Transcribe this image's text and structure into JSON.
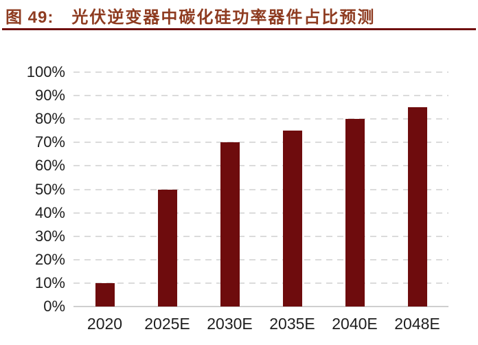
{
  "header": {
    "figure_label": "图 49:",
    "title": "光伏逆变器中碳化硅功率器件占比预测"
  },
  "chart_data": {
    "type": "bar",
    "title": "光伏逆变器中碳化硅功率器件占比预测",
    "figure_label": "图 49:",
    "categories": [
      "2020",
      "2025E",
      "2030E",
      "2035E",
      "2040E",
      "2048E"
    ],
    "values": [
      10,
      50,
      70,
      75,
      80,
      85
    ],
    "xlabel": "",
    "ylabel": "",
    "ylim": [
      0,
      100
    ],
    "y_ticks": [
      {
        "value": 100,
        "label": "100%"
      },
      {
        "value": 90,
        "label": "90%"
      },
      {
        "value": 80,
        "label": "80%"
      },
      {
        "value": 70,
        "label": "70%"
      },
      {
        "value": 60,
        "label": "60%"
      },
      {
        "value": 50,
        "label": "50%"
      },
      {
        "value": 40,
        "label": "40%"
      },
      {
        "value": 30,
        "label": "30%"
      },
      {
        "value": 20,
        "label": "20%"
      },
      {
        "value": 10,
        "label": "10%"
      },
      {
        "value": 0,
        "label": "0%"
      }
    ],
    "grid": "horizontal-dashed",
    "legend": "none",
    "colors": {
      "bar": "#6E0C0D",
      "title_text": "#8E3B20",
      "title_rule": "#6F100F",
      "gridline": "#DBDBDB",
      "baseline": "#CFCFCF",
      "axis_text": "#1E1E1E",
      "background": "#FFFFFF"
    }
  }
}
